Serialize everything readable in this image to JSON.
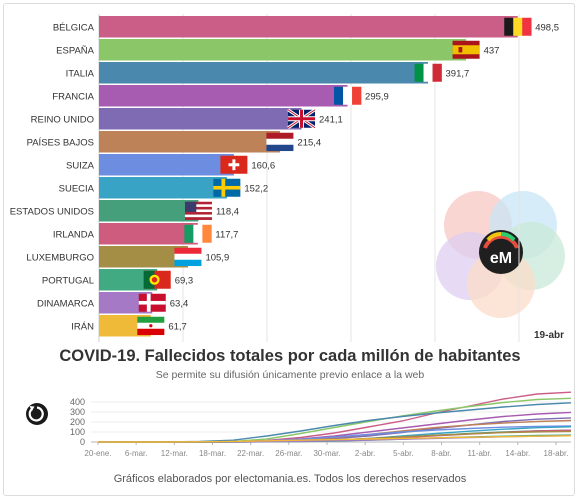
{
  "chart_data": [
    {
      "type": "bar",
      "orientation": "horizontal",
      "title": "COVID-19. Fallecidos totales por cada millón de habitantes",
      "subtitle": "Se permite su difusión únicamente previo enlace a la web",
      "date_label": "19-abr",
      "grid": true,
      "categories": [
        "BÉLGICA",
        "ESPAÑA",
        "ITALIA",
        "FRANCIA",
        "REINO UNIDO",
        "PAÍSES BAJOS",
        "SUIZA",
        "SUECIA",
        "ESTADOS UNIDOS",
        "IRLANDA",
        "LUXEMBURGO",
        "PORTUGAL",
        "DINAMARCA",
        "IRÁN"
      ],
      "values": [
        498.5,
        437,
        391.7,
        295.9,
        241.1,
        215.4,
        160.6,
        152.2,
        118.4,
        117.7,
        105.9,
        69.3,
        63.4,
        61.7
      ],
      "value_labels": [
        "498,5",
        "437",
        "391,7",
        "295,9",
        "241,1",
        "215,4",
        "160,6",
        "152,2",
        "118,4",
        "117,7",
        "105,9",
        "69,3",
        "63,4",
        "61,7"
      ],
      "bar_colors": [
        "#cb5e87",
        "#8bc768",
        "#4a89ad",
        "#a75bb1",
        "#7f6bb3",
        "#be8259",
        "#6d8ee0",
        "#38a3c4",
        "#469f7b",
        "#cd5c7e",
        "#a48e45",
        "#41aa82",
        "#a679c6",
        "#efba37"
      ],
      "flags": [
        "belgium",
        "spain",
        "italy",
        "france",
        "united-kingdom",
        "netherlands",
        "switzerland",
        "sweden",
        "united-states",
        "ireland",
        "luxembourg",
        "portugal",
        "denmark",
        "iran"
      ],
      "xlim": [
        0,
        500
      ]
    },
    {
      "type": "line",
      "x_tick_labels": [
        "20-ene.",
        "6-mar.",
        "12-mar.",
        "18-mar.",
        "22-mar.",
        "26-mar.",
        "30-mar.",
        "2-abr.",
        "5-abr.",
        "8-abr.",
        "11-abr.",
        "14-abr.",
        "18-abr."
      ],
      "y_ticks": [
        0,
        100,
        200,
        300,
        400
      ],
      "ylim": [
        0,
        500
      ],
      "grid": true,
      "series": [
        {
          "color": "#cb5e87",
          "values": [
            0,
            0,
            0,
            1,
            3,
            15,
            45,
            90,
            150,
            210,
            290,
            360,
            430,
            480,
            498
          ]
        },
        {
          "color": "#8bc768",
          "values": [
            0,
            0,
            0,
            2,
            6,
            30,
            85,
            145,
            205,
            260,
            310,
            355,
            395,
            425,
            437
          ]
        },
        {
          "color": "#4a89ad",
          "values": [
            0,
            0,
            1,
            5,
            18,
            60,
            110,
            165,
            215,
            255,
            290,
            320,
            350,
            375,
            392
          ]
        },
        {
          "color": "#a75bb1",
          "values": [
            0,
            0,
            0,
            1,
            4,
            12,
            30,
            60,
            100,
            140,
            180,
            220,
            255,
            280,
            296
          ]
        },
        {
          "color": "#7f6bb3",
          "values": [
            0,
            0,
            0,
            0,
            2,
            6,
            18,
            35,
            60,
            95,
            135,
            170,
            205,
            228,
            241
          ]
        },
        {
          "color": "#be8259",
          "values": [
            0,
            0,
            0,
            0,
            2,
            8,
            22,
            45,
            75,
            110,
            145,
            170,
            190,
            205,
            215
          ]
        },
        {
          "color": "#6d8ee0",
          "values": [
            0,
            0,
            0,
            1,
            4,
            12,
            28,
            50,
            75,
            100,
            120,
            135,
            148,
            156,
            161
          ]
        },
        {
          "color": "#38a3c4",
          "values": [
            0,
            0,
            0,
            0,
            1,
            3,
            8,
            18,
            35,
            60,
            85,
            108,
            128,
            143,
            152
          ]
        },
        {
          "color": "#469f7b",
          "values": [
            0,
            0,
            0,
            0,
            1,
            3,
            8,
            16,
            30,
            48,
            68,
            85,
            100,
            112,
            118
          ]
        },
        {
          "color": "#cd5c7e",
          "values": [
            0,
            0,
            0,
            0,
            1,
            3,
            8,
            16,
            28,
            44,
            62,
            80,
            96,
            110,
            118
          ]
        },
        {
          "color": "#a48e45",
          "values": [
            0,
            0,
            0,
            0,
            1,
            4,
            10,
            20,
            35,
            52,
            68,
            82,
            94,
            101,
            106
          ]
        },
        {
          "color": "#41aa82",
          "values": [
            0,
            0,
            0,
            0,
            0,
            2,
            5,
            10,
            18,
            28,
            40,
            50,
            58,
            65,
            69
          ]
        },
        {
          "color": "#a679c6",
          "values": [
            0,
            0,
            0,
            0,
            1,
            3,
            7,
            13,
            20,
            28,
            36,
            44,
            52,
            58,
            63
          ]
        },
        {
          "color": "#efba37",
          "values": [
            0,
            0,
            0,
            2,
            6,
            12,
            18,
            24,
            30,
            36,
            42,
            48,
            53,
            58,
            62
          ]
        }
      ]
    }
  ],
  "logo": {
    "text": "eM"
  },
  "footer": {
    "credits": "Gráficos elaborados por electomania.es. Todos los derechos reservados"
  },
  "controls": {
    "replay_icon": "replay-icon"
  }
}
